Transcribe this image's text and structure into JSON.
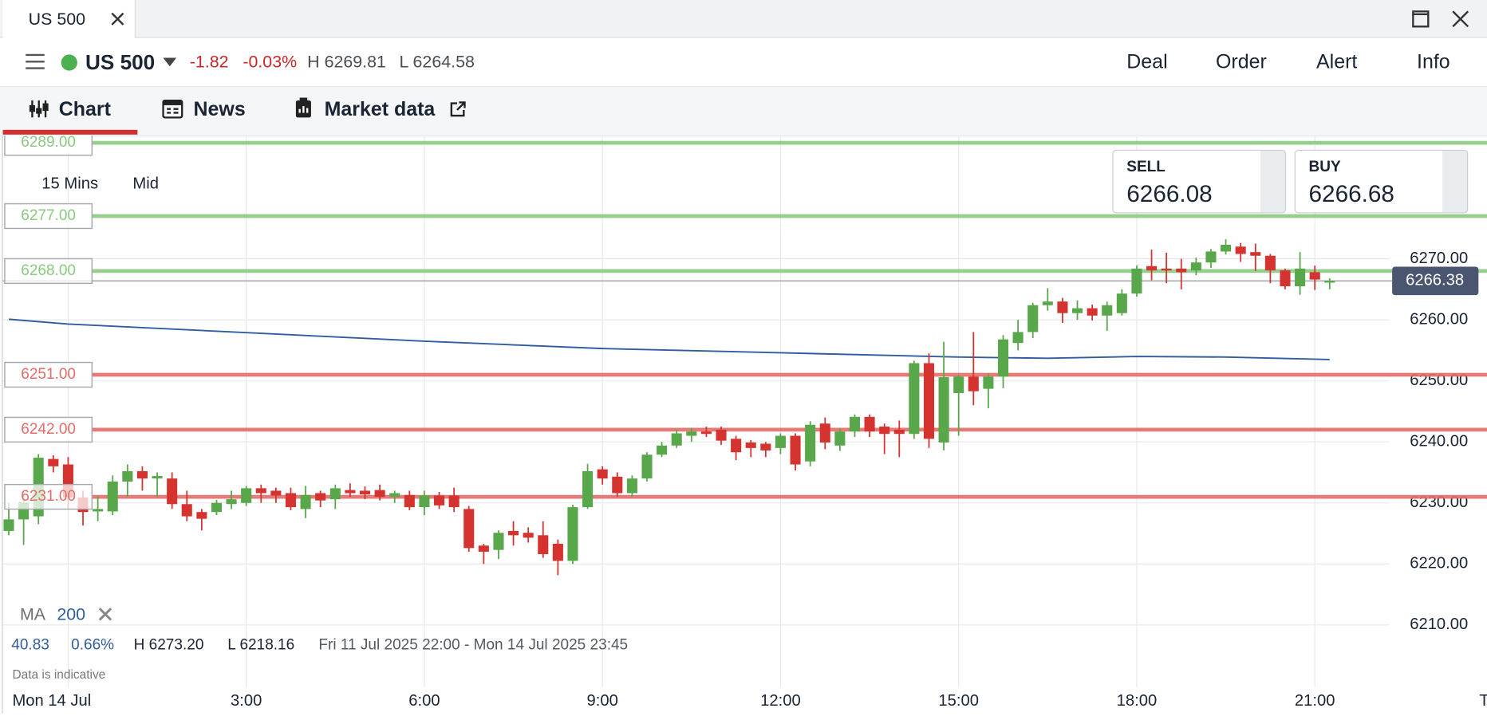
{
  "window": {
    "tab_title": "US 500"
  },
  "header": {
    "instrument": "US 500",
    "change": "-1.82",
    "change_pct": "-0.03%",
    "high": "H 6269.81",
    "low": "L 6264.58",
    "actions": [
      "Deal",
      "Order",
      "Alert",
      "Info"
    ]
  },
  "tabs": [
    "Chart",
    "News",
    "Market data"
  ],
  "quote": {
    "sell_label": "SELL",
    "sell": "6266.08",
    "buy_label": "BUY",
    "buy": "6266.68"
  },
  "chart_info": {
    "timeframe": "15 Mins",
    "price_type": "Mid",
    "indicator": "MA",
    "indicator_period": "200",
    "stats": [
      "40.83",
      "0.66%",
      "H 6273.20",
      "L 6218.16",
      "Fri 11 Jul 2025 22:00 - Mon 14 Jul 2025 23:45"
    ],
    "note": "Data is indicative"
  },
  "chart_data": {
    "type": "candlestick",
    "up_color": "#58a84b",
    "down_color": "#d4332f",
    "grid": true,
    "xlim": [
      -1.1,
      23.9
    ],
    "ylim": [
      6199.8,
      6290.2
    ],
    "xticks": [
      {
        "value": 0,
        "label": "Mon 14 Jul"
      },
      {
        "value": 3,
        "label": "3:00"
      },
      {
        "value": 6,
        "label": "6:00"
      },
      {
        "value": 9,
        "label": "9:00"
      },
      {
        "value": 12,
        "label": "12:00"
      },
      {
        "value": 15,
        "label": "15:00"
      },
      {
        "value": 18,
        "label": "18:00"
      },
      {
        "value": 21,
        "label": "21:00"
      },
      {
        "value": 24,
        "label": "Tue"
      }
    ],
    "yticks": [
      {
        "value": 6210,
        "label": "6210.00"
      },
      {
        "value": 6220,
        "label": "6220.00"
      },
      {
        "value": 6230,
        "label": "6230.00"
      },
      {
        "value": 6240,
        "label": "6240.00"
      },
      {
        "value": 6250,
        "label": "6250.00"
      },
      {
        "value": 6260,
        "label": "6260.00"
      },
      {
        "value": 6270,
        "label": "6270.00"
      }
    ],
    "x": [
      -1,
      -0.75,
      -0.5,
      -0.25,
      0,
      0.25,
      0.5,
      0.75,
      1,
      1.25,
      1.5,
      1.75,
      2,
      2.25,
      2.5,
      2.75,
      3,
      3.25,
      3.5,
      3.75,
      4,
      4.25,
      4.5,
      4.75,
      5,
      5.25,
      5.5,
      5.75,
      6,
      6.25,
      6.5,
      6.75,
      7,
      7.25,
      7.5,
      7.75,
      8,
      8.25,
      8.5,
      8.75,
      9,
      9.25,
      9.5,
      9.75,
      10,
      10.25,
      10.5,
      10.75,
      11,
      11.25,
      11.5,
      11.75,
      12,
      12.25,
      12.5,
      12.75,
      13,
      13.25,
      13.5,
      13.75,
      14,
      14.25,
      14.5,
      14.75,
      15,
      15.25,
      15.5,
      15.75,
      16,
      16.25,
      16.5,
      16.75,
      17,
      17.25,
      17.5,
      17.75,
      18,
      18.25,
      18.5,
      18.75,
      19,
      19.25,
      19.5,
      19.75,
      20,
      20.25,
      20.5,
      20.75,
      21,
      21.25
    ],
    "open": [
      6225.4,
      6227.3,
      6227.8,
      6237.2,
      6236.3,
      6230.9,
      6228.6,
      6228.6,
      6233.5,
      6235.2,
      6234,
      6234,
      6229.8,
      6228.5,
      6228.5,
      6229.8,
      6230,
      6232.4,
      6232,
      6231.6,
      6229,
      6231.6,
      6230.6,
      6232.1,
      6232,
      6232.1,
      6231,
      6231.3,
      6229.3,
      6231.2,
      6231.2,
      6229,
      6223,
      6222.3,
      6225.4,
      6225.1,
      6224.7,
      6223.3,
      6220.5,
      6229.3,
      6235.5,
      6234.3,
      6231.6,
      6234,
      6237.9,
      6239.4,
      6241,
      6241.7,
      6242,
      6240.5,
      6239.9,
      6239.7,
      6239,
      6241,
      6236.8,
      6243,
      6239.4,
      6241.7,
      6244.1,
      6242.5,
      6242,
      6241.3,
      6252.9,
      6239.9,
      6248,
      6250.7,
      6248.7,
      6250.7,
      6256.2,
      6258,
      6262.4,
      6263,
      6261.1,
      6261.9,
      6260.7,
      6261.1,
      6264.3,
      6268.8,
      6268.4,
      6268.4,
      6268.1,
      6269.4,
      6271.2,
      6272,
      6271.1,
      6270.5,
      6268.1,
      6265.5,
      6267.8,
      6266.1
    ],
    "high": [
      6230,
      6231.6,
      6238,
      6237.8,
      6237.5,
      6232,
      6231,
      6234.5,
      6236.3,
      6236,
      6235,
      6235,
      6232,
      6229,
      6230.5,
      6232,
      6232.8,
      6233,
      6232.5,
      6232.5,
      6232.8,
      6232,
      6233,
      6233.2,
      6232.7,
      6233,
      6232,
      6232,
      6232,
      6231.8,
      6232.5,
      6229.5,
      6223.3,
      6225.5,
      6227,
      6226,
      6227,
      6224,
      6229.7,
      6236.4,
      6236,
      6235,
      6234.5,
      6238.3,
      6240,
      6242,
      6242.3,
      6242.5,
      6242.5,
      6241,
      6240.3,
      6240,
      6241.4,
      6241.4,
      6243.4,
      6244,
      6242.2,
      6244.5,
      6244.5,
      6243,
      6243.5,
      6253.3,
      6254.5,
      6256.4,
      6251,
      6258,
      6251.2,
      6257.5,
      6260,
      6262.8,
      6265.2,
      6263.6,
      6263.2,
      6262.5,
      6263,
      6265,
      6268.9,
      6271.5,
      6271,
      6270,
      6270.2,
      6271.6,
      6273.2,
      6272.6,
      6272.5,
      6270.8,
      6268.4,
      6271.1,
      6268.9,
      6266.8
    ],
    "low": [
      6224.7,
      6223.1,
      6226.5,
      6235,
      6229,
      6226.3,
      6227,
      6228,
      6231,
      6232,
      6231,
      6229,
      6227,
      6225.5,
      6228,
      6229,
      6229.5,
      6230,
      6230,
      6228.8,
      6227.5,
      6229.3,
      6229,
      6231,
      6230.6,
      6230.4,
      6230,
      6228.8,
      6228,
      6229,
      6228.5,
      6222,
      6220,
      6220.8,
      6223,
      6223.5,
      6221,
      6218.16,
      6220,
      6229,
      6233,
      6231,
      6231,
      6233.5,
      6237.5,
      6239,
      6240,
      6240.8,
      6239.5,
      6237,
      6237.5,
      6237.5,
      6238,
      6235.3,
      6236,
      6238.8,
      6238.5,
      6240.8,
      6240.8,
      6238,
      6237.5,
      6240.5,
      6239,
      6238.6,
      6241,
      6246,
      6245.5,
      6248.8,
      6255,
      6257,
      6261.5,
      6259.5,
      6260,
      6259.9,
      6258.2,
      6260.7,
      6263.8,
      6266.5,
      6266,
      6265,
      6267.3,
      6268.5,
      6270.7,
      6269.5,
      6268,
      6266,
      6265,
      6264.1,
      6264.9,
      6265
    ],
    "close": [
      6227.3,
      6230.1,
      6237.4,
      6236,
      6230.9,
      6228.5,
      6229,
      6233.5,
      6235.2,
      6234,
      6234.4,
      6229.8,
      6227.8,
      6227.4,
      6230,
      6230.6,
      6232.4,
      6231.6,
      6231.2,
      6229.3,
      6231.3,
      6230.4,
      6232.4,
      6231.6,
      6231.4,
      6231,
      6231.6,
      6229.3,
      6231.2,
      6229.6,
      6229.3,
      6222.6,
      6222,
      6225.1,
      6224.7,
      6224.3,
      6221.6,
      6220.5,
      6229.3,
      6235.2,
      6234,
      6231.6,
      6234,
      6237.9,
      6239.4,
      6241.4,
      6241.7,
      6241.3,
      6240.2,
      6238.3,
      6239,
      6238.6,
      6241,
      6236.3,
      6242.8,
      6239.9,
      6241.7,
      6244.1,
      6241.7,
      6241.3,
      6241.3,
      6252.9,
      6240.5,
      6250.6,
      6250.7,
      6248.3,
      6250.7,
      6256.8,
      6258,
      6262.4,
      6263,
      6261.1,
      6261.9,
      6260.7,
      6262.4,
      6264.3,
      6268.4,
      6268.1,
      6268.1,
      6267.8,
      6269.4,
      6271.2,
      6272.3,
      6270.8,
      6270.5,
      6268.1,
      6265.5,
      6268.4,
      6266.6,
      6266.4
    ],
    "ma": {
      "color": "#2f5d9e",
      "x": [
        -1,
        0,
        3,
        6,
        9,
        12,
        15,
        16.5,
        18,
        19.5,
        21.25
      ],
      "values": [
        6260.1,
        6259.3,
        6257.9,
        6256.5,
        6255.3,
        6254.6,
        6253.9,
        6253.7,
        6254.0,
        6253.9,
        6253.5
      ]
    },
    "levels": [
      {
        "value": 6289,
        "label": "6289.00",
        "color": "#8bc981"
      },
      {
        "value": 6277,
        "label": "6277.00",
        "color": "#8bc981"
      },
      {
        "value": 6268,
        "label": "6268.00",
        "color": "#8bc981"
      },
      {
        "value": 6251,
        "label": "6251.00",
        "color": "#e36b68"
      },
      {
        "value": 6242,
        "label": "6242.00",
        "color": "#e36b68"
      },
      {
        "value": 6231,
        "label": "6231.00",
        "color": "#e36b68"
      }
    ],
    "current_price": {
      "value": 6266.38,
      "label": "6266.38"
    }
  }
}
